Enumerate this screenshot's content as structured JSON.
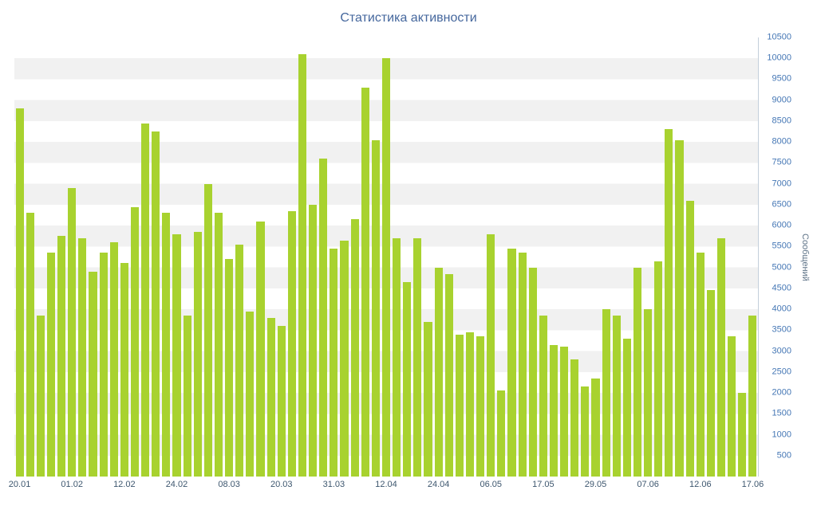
{
  "title": "Статистика активности",
  "y_axis": {
    "title": "Сообщений",
    "min": 0,
    "max": 10500,
    "tick_interval": 500,
    "tick_values": [
      500,
      1000,
      1500,
      2000,
      2500,
      3000,
      3500,
      4000,
      4500,
      5000,
      5500,
      6000,
      6500,
      7000,
      7500,
      8000,
      8500,
      9000,
      9500,
      10000,
      10500
    ]
  },
  "colors": {
    "bar": "#a8d22f",
    "band": "#f1f1f1",
    "title_text": "#45679d",
    "y_tick_text": "#4577b5",
    "x_tick_text": "#3e576f"
  },
  "chart_data": {
    "type": "bar",
    "title": "Статистика активности",
    "xlabel": "",
    "ylabel": "Сообщений",
    "ylim": [
      0,
      10500
    ],
    "grid": "alternating horizontal bands every 500",
    "legend": "none",
    "values": [
      8800,
      6300,
      3850,
      5350,
      5750,
      6900,
      5700,
      4900,
      5350,
      5600,
      5100,
      6450,
      8450,
      8250,
      6300,
      5800,
      3850,
      5850,
      7000,
      6300,
      5200,
      5550,
      3950,
      6100,
      3800,
      3600,
      6350,
      10100,
      6500,
      7600,
      5450,
      5650,
      6150,
      9300,
      8050,
      10000,
      5700,
      4650,
      5700,
      3700,
      5000,
      4850,
      3400,
      3450,
      3350,
      5800,
      2050,
      5450,
      5350,
      5000,
      3850,
      3150,
      3100,
      2800,
      2150,
      2350,
      4000,
      3850,
      3300,
      5000,
      4000,
      5150,
      8300,
      8050,
      6600,
      5350,
      4450,
      5700,
      3350,
      2000,
      3850
    ],
    "x_tick_labels": [
      {
        "index": 0,
        "label": "20.01"
      },
      {
        "index": 5,
        "label": "01.02"
      },
      {
        "index": 10,
        "label": "12.02"
      },
      {
        "index": 15,
        "label": "24.02"
      },
      {
        "index": 20,
        "label": "08.03"
      },
      {
        "index": 25,
        "label": "20.03"
      },
      {
        "index": 30,
        "label": "31.03"
      },
      {
        "index": 35,
        "label": "12.04"
      },
      {
        "index": 40,
        "label": "24.04"
      },
      {
        "index": 45,
        "label": "06.05"
      },
      {
        "index": 50,
        "label": "17.05"
      },
      {
        "index": 55,
        "label": "29.05"
      },
      {
        "index": 60,
        "label": "07.06"
      },
      {
        "index": 65,
        "label": "12.06"
      },
      {
        "index": 70,
        "label": "17.06"
      }
    ]
  }
}
